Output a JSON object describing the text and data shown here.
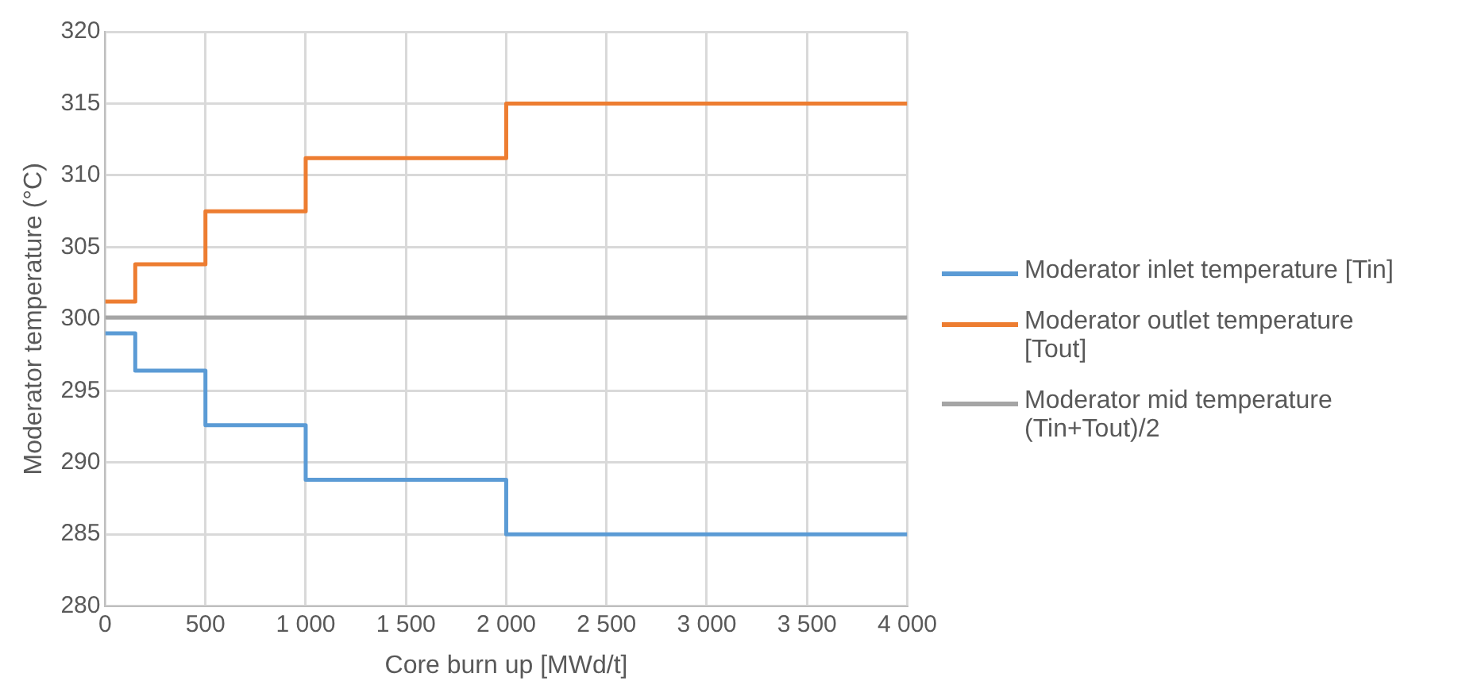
{
  "chart_data": {
    "type": "step",
    "xlabel": "Core burn up [MWd/t]",
    "ylabel": "Moderator temperature (°C)",
    "x": [
      0,
      150,
      500,
      1000,
      2000,
      4000
    ],
    "series": [
      {
        "name": "Moderator inlet temperature [Tin]",
        "color": "#5b9bd5",
        "values": [
          299.0,
          296.4,
          292.6,
          288.8,
          285.0,
          285.0
        ]
      },
      {
        "name": "Moderator outlet temperature [Tout]",
        "color": "#ed7d31",
        "values": [
          301.2,
          303.8,
          307.5,
          311.2,
          315.0,
          315.0
        ]
      },
      {
        "name": "Moderator mid temperature (Tin+Tout)/2",
        "color": "#a5a5a5",
        "values": [
          300.1,
          300.1,
          300.1,
          300.1,
          300.1,
          300.1
        ]
      }
    ],
    "xlim": [
      0,
      4000
    ],
    "xticks": [
      0,
      500,
      {
        "value": 1000,
        "label": "1 000"
      },
      {
        "value": 1500,
        "label": "1 500"
      },
      {
        "value": 2000,
        "label": "2 000"
      },
      {
        "value": 2500,
        "label": "2 500"
      },
      {
        "value": 3000,
        "label": "3 000"
      },
      {
        "value": 3500,
        "label": "3 500"
      },
      {
        "value": 4000,
        "label": "4 000"
      }
    ],
    "ylim": [
      280,
      320
    ],
    "yticks": [
      280,
      285,
      290,
      295,
      300,
      305,
      310,
      315,
      320
    ],
    "grid": true,
    "legend": "right",
    "marker": "none",
    "line_style": "solid"
  }
}
